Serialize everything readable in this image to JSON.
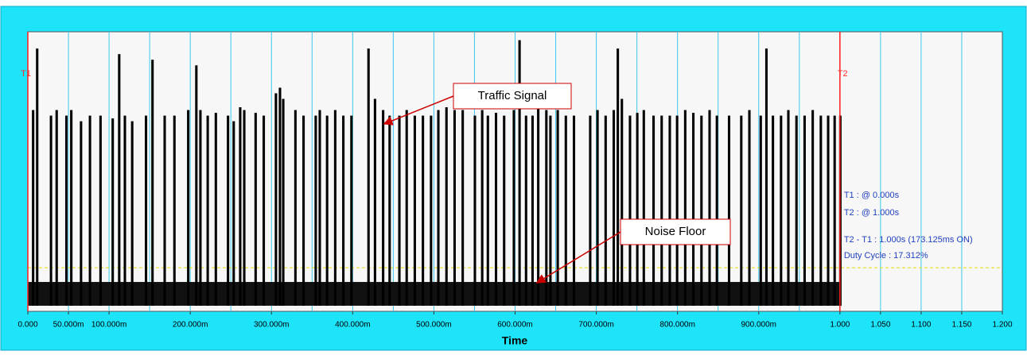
{
  "chart_data": {
    "type": "pulse",
    "x_label": "Time",
    "xlim": [
      0,
      1.2
    ],
    "ylim": [
      0,
      1
    ],
    "xticks": [
      {
        "value": 0,
        "label": "0.000"
      },
      {
        "value": 0.05,
        "label": "50.000m"
      },
      {
        "value": 0.1,
        "label": "100.000m"
      },
      {
        "value": 0.2,
        "label": "200.000m"
      },
      {
        "value": 0.3,
        "label": "300.000m"
      },
      {
        "value": 0.4,
        "label": "400.000m"
      },
      {
        "value": 0.5,
        "label": "500.000m"
      },
      {
        "value": 0.6,
        "label": "600.000m"
      },
      {
        "value": 0.7,
        "label": "700.000m"
      },
      {
        "value": 0.8,
        "label": "800.000m"
      },
      {
        "value": 0.9,
        "label": "900.000m"
      },
      {
        "value": 1,
        "label": "1.000"
      },
      {
        "value": 1.05,
        "label": "1.050"
      },
      {
        "value": 1.1,
        "label": "1.100"
      },
      {
        "value": 1.15,
        "label": "1.150"
      },
      {
        "value": 1.2,
        "label": "1.200"
      }
    ],
    "xgrid": [
      0.05,
      0.1,
      0.15,
      0.2,
      0.25,
      0.3,
      0.35,
      0.4,
      0.45,
      0.5,
      0.55,
      0.6,
      0.65,
      0.7,
      0.75,
      0.8,
      0.85,
      0.9,
      0.95,
      1,
      1.05,
      1.1,
      1.15
    ],
    "grid_color": "#3cc8e8",
    "pulse_width": 0.003,
    "series": [
      {
        "name": "Traffic Signal",
        "color": "#000000",
        "x": [
          0.005,
          0.01,
          0.027,
          0.034,
          0.046,
          0.052,
          0.064,
          0.075,
          0.088,
          0.103,
          0.111,
          0.118,
          0.127,
          0.144,
          0.152,
          0.167,
          0.179,
          0.196,
          0.206,
          0.211,
          0.22,
          0.23,
          0.245,
          0.252,
          0.26,
          0.265,
          0.279,
          0.289,
          0.304,
          0.309,
          0.313,
          0.328,
          0.338,
          0.353,
          0.358,
          0.367,
          0.377,
          0.387,
          0.397,
          0.418,
          0.426,
          0.436,
          0.444,
          0.456,
          0.465,
          0.475,
          0.485,
          0.495,
          0.504,
          0.514,
          0.524,
          0.534,
          0.549,
          0.558,
          0.565,
          0.575,
          0.585,
          0.597,
          0.604,
          0.612,
          0.62,
          0.627,
          0.637,
          0.642,
          0.651,
          0.661,
          0.671,
          0.691,
          0.7,
          0.71,
          0.72,
          0.725,
          0.73,
          0.74,
          0.749,
          0.757,
          0.769,
          0.779,
          0.789,
          0.798,
          0.808,
          0.818,
          0.828,
          0.838,
          0.847,
          0.862,
          0.877,
          0.887,
          0.901,
          0.908,
          0.916,
          0.926,
          0.935,
          0.945,
          0.955,
          0.965,
          0.975,
          0.984,
          0.992,
          0.999
        ],
        "values": [
          0.72,
          0.94,
          0.7,
          0.72,
          0.7,
          0.72,
          0.68,
          0.7,
          0.7,
          0.69,
          0.92,
          0.7,
          0.68,
          0.7,
          0.9,
          0.7,
          0.7,
          0.72,
          0.88,
          0.72,
          0.7,
          0.71,
          0.7,
          0.68,
          0.73,
          0.72,
          0.71,
          0.7,
          0.78,
          0.8,
          0.76,
          0.72,
          0.7,
          0.7,
          0.72,
          0.7,
          0.72,
          0.7,
          0.7,
          0.94,
          0.76,
          0.72,
          0.7,
          0.7,
          0.72,
          0.7,
          0.7,
          0.7,
          0.72,
          0.73,
          0.72,
          0.72,
          0.7,
          0.72,
          0.7,
          0.71,
          0.7,
          0.72,
          0.97,
          0.7,
          0.7,
          0.76,
          0.72,
          0.7,
          0.72,
          0.7,
          0.7,
          0.7,
          0.72,
          0.7,
          0.72,
          0.94,
          0.76,
          0.7,
          0.71,
          0.72,
          0.7,
          0.7,
          0.7,
          0.7,
          0.72,
          0.71,
          0.7,
          0.72,
          0.7,
          0.7,
          0.7,
          0.72,
          0.7,
          0.94,
          0.7,
          0.7,
          0.72,
          0.7,
          0.7,
          0.72,
          0.7,
          0.7,
          0.7,
          0.7
        ]
      }
    ],
    "noise_band": [
      0.02,
      0.105
    ],
    "threshold": 0.156,
    "cursors": [
      {
        "name": "T1",
        "x": 0
      },
      {
        "name": "T2",
        "x": 1
      }
    ],
    "readouts": [
      "T1 : @ 0.000s",
      "T2 : @ 1.000s",
      "T2 - T1 : 1.000s (173.125ms ON)",
      "Duty Cycle : 17.312%"
    ],
    "annotations": [
      "Traffic Signal",
      "Noise Floor"
    ]
  }
}
